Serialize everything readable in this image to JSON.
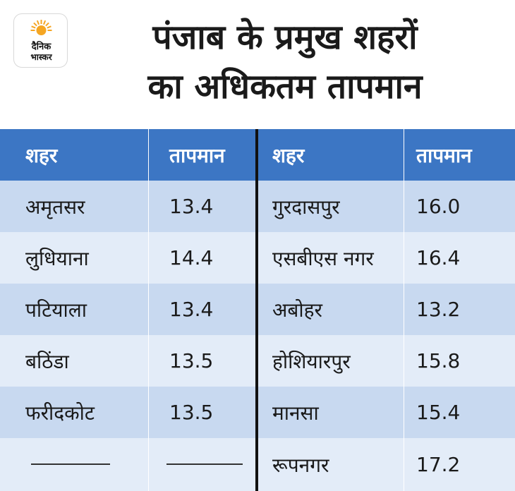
{
  "header": {
    "logo_line1": "दैनिक",
    "logo_line2": "भास्कर",
    "title_line1": "पंजाब के प्रमुख शहरों",
    "title_line2": "का अधिकतम तापमान"
  },
  "table": {
    "columns": [
      "शहर",
      "तापमान",
      "शहर",
      "तापमान"
    ],
    "rows": [
      {
        "city_left": "अमृतसर",
        "temp_left": "13.4",
        "city_right": "गुरदासपुर",
        "temp_right": "16.0"
      },
      {
        "city_left": "लुधियाना",
        "temp_left": "14.4",
        "city_right": "एसबीएस नगर",
        "temp_right": "16.4"
      },
      {
        "city_left": "पटियाला",
        "temp_left": "13.4",
        "city_right": "अबोहर",
        "temp_right": "13.2"
      },
      {
        "city_left": "बठिंडा",
        "temp_left": "13.5",
        "city_right": "होशियारपुर",
        "temp_right": "15.8"
      },
      {
        "city_left": "फरीदकोट",
        "temp_left": "13.5",
        "city_right": "मानसा",
        "temp_right": "15.4"
      },
      {
        "city_left": "",
        "temp_left": "",
        "city_right": "रूपनगर",
        "temp_right": "17.2"
      }
    ]
  },
  "colors": {
    "header_blue": "#3c76c4",
    "row_dark": "#c8d9f0",
    "row_light": "#e3ecf8",
    "logo_sun": "#f5a623"
  }
}
